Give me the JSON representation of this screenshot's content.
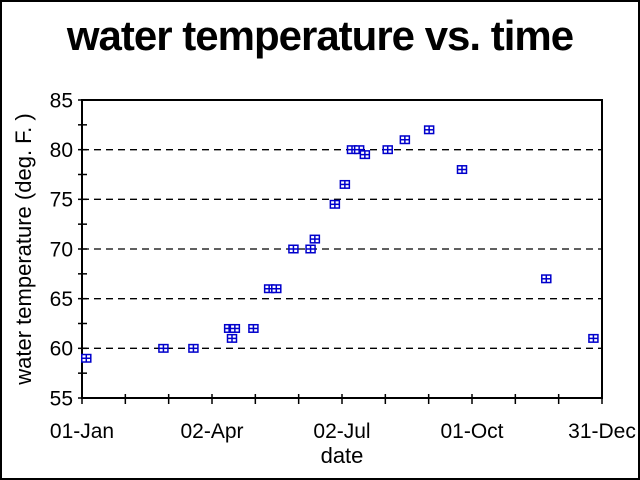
{
  "page": {
    "background": "#FFFFFF",
    "border_color": "#000000"
  },
  "colors": {
    "marker": "#0000CC",
    "axis": "#000000",
    "gridline": "#000000",
    "text": "#000000"
  },
  "chart_data": {
    "type": "scatter",
    "title": "water temperature vs. time",
    "xlabel": "date",
    "ylabel": "water temperature (deg. F. )",
    "legend": "none",
    "marker_style": "open square with center cross",
    "x_axis": {
      "unit": "day of year",
      "range_days": [
        0,
        364
      ],
      "major_tick_labels": [
        "01-Jan",
        "02-Apr",
        "02-Jul",
        "01-Oct",
        "31-Dec"
      ],
      "major_tick_days": [
        0,
        91,
        182,
        273,
        364
      ],
      "total_ticks": 13,
      "minor_ticks_between_major": 2
    },
    "y_axis": {
      "min": 55,
      "max": 85,
      "tick_step": 5,
      "minor_tick_step": 2.5,
      "tick_labels": [
        "55",
        "60",
        "65",
        "70",
        "75",
        "80",
        "85"
      ],
      "gridlines_at": [
        60,
        65,
        70,
        75,
        80
      ],
      "gridline_style": "dashed"
    },
    "points": [
      {
        "date": "04-Jan",
        "day": 3,
        "temp": 59
      },
      {
        "date": "27-Feb",
        "day": 57,
        "temp": 60
      },
      {
        "date": "20-Mar",
        "day": 78,
        "temp": 60
      },
      {
        "date": "14-Apr",
        "day": 103,
        "temp": 62
      },
      {
        "date": "16-Apr",
        "day": 105,
        "temp": 61
      },
      {
        "date": "18-Apr",
        "day": 107,
        "temp": 62
      },
      {
        "date": "01-May",
        "day": 120,
        "temp": 62
      },
      {
        "date": "12-May",
        "day": 131,
        "temp": 66
      },
      {
        "date": "17-May",
        "day": 136,
        "temp": 66
      },
      {
        "date": "29-May",
        "day": 148,
        "temp": 70
      },
      {
        "date": "10-Jun",
        "day": 160,
        "temp": 70
      },
      {
        "date": "13-Jun",
        "day": 163,
        "temp": 71
      },
      {
        "date": "27-Jun",
        "day": 177,
        "temp": 74.5
      },
      {
        "date": "04-Jul",
        "day": 184,
        "temp": 76.5
      },
      {
        "date": "09-Jul",
        "day": 189,
        "temp": 80
      },
      {
        "date": "14-Jul",
        "day": 194,
        "temp": 80
      },
      {
        "date": "18-Jul",
        "day": 198,
        "temp": 79.5
      },
      {
        "date": "03-Aug",
        "day": 214,
        "temp": 80
      },
      {
        "date": "15-Aug",
        "day": 226,
        "temp": 81
      },
      {
        "date": "01-Sep",
        "day": 243,
        "temp": 82
      },
      {
        "date": "24-Sep",
        "day": 266,
        "temp": 78
      },
      {
        "date": "22-Nov",
        "day": 325,
        "temp": 67
      },
      {
        "date": "25-Dec",
        "day": 358,
        "temp": 61
      }
    ]
  }
}
